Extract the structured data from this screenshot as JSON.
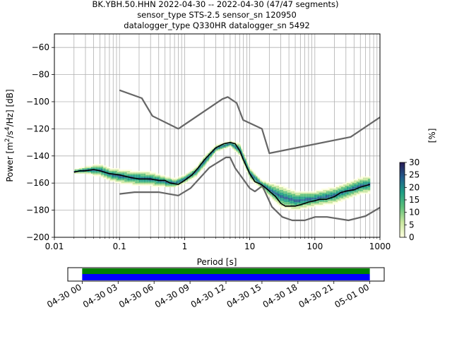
{
  "title_lines": [
    "BK.YBH.50.HHN   2022-04-30 -- 2022-04-30  (47/47 segments)",
    "sensor_type STS-2.5 sensor_sn 120950",
    "datalogger_type Q330HR datalogger_sn 5492"
  ],
  "chart_data": [
    {
      "type": "heatmap",
      "title": "BK.YBH.50.HHN   2022-04-30 -- 2022-04-30  (47/47 segments)",
      "xlabel": "Period [s]",
      "ylabel": "Power [m²/s⁴/Hz] [dB]",
      "ylabel_parts": {
        "pre": "Power [m",
        "sup1": "2",
        "mid": "/s",
        "sup2": "4",
        "post": "/Hz] [dB]"
      },
      "x_scale": "log",
      "xlim": [
        0.01,
        1000
      ],
      "ylim": [
        -200,
        -50
      ],
      "x_ticks": [
        0.01,
        0.1,
        1,
        10,
        100,
        1000
      ],
      "x_tick_labels": [
        "0.01",
        "0.1",
        "1",
        "10",
        "100",
        "1000"
      ],
      "y_ticks": [
        -200,
        -180,
        -160,
        -140,
        -120,
        -100,
        -80,
        -60
      ],
      "y_tick_labels": [
        "−200",
        "−180",
        "−160",
        "−140",
        "−120",
        "−100",
        "−80",
        "−60"
      ],
      "grid": true,
      "colorbar": {
        "label": "[%]",
        "range": [
          0,
          30
        ],
        "ticks": [
          0,
          5,
          10,
          15,
          20,
          25,
          30
        ],
        "tick_labels": [
          "0",
          "5",
          "10",
          "15",
          "20",
          "25",
          "30"
        ],
        "colormap": [
          "#ffffe0",
          "#c9e79f",
          "#5fc07a",
          "#1e9e84",
          "#225c8e",
          "#281a55"
        ]
      },
      "series": [
        {
          "name": "",
          "role": "noise-model-high",
          "color": "#666666",
          "period": [
            0.1,
            0.22,
            0.32,
            0.8,
            3.8,
            4.6,
            6.3,
            7.9,
            15.4,
            20,
            354.8,
            1000
          ],
          "power": [
            -91.5,
            -97.4,
            -110.5,
            -120.0,
            -98.0,
            -96.5,
            -101.0,
            -113.5,
            -120.0,
            -138.0,
            -126.0,
            -111.5
          ]
        },
        {
          "name": "",
          "role": "noise-model-low",
          "color": "#666666",
          "period": [
            0.1,
            0.17,
            0.4,
            0.8,
            1.24,
            2.4,
            4.3,
            5.0,
            6.0,
            10.0,
            12.0,
            15.6,
            21.9,
            31.6,
            45,
            70,
            101,
            154,
            328,
            600,
            1000
          ],
          "power": [
            -168.0,
            -166.7,
            -166.7,
            -169.2,
            -163.7,
            -148.6,
            -141.1,
            -141.1,
            -149.0,
            -163.8,
            -166.2,
            -162.1,
            -177.5,
            -185.0,
            -187.5,
            -187.5,
            -185.0,
            -185.0,
            -187.5,
            -184.4,
            -178.0
          ]
        },
        {
          "name": "",
          "role": "mode",
          "color": "#000000",
          "period": [
            0.02,
            0.025,
            0.03,
            0.04,
            0.05,
            0.07,
            0.1,
            0.15,
            0.2,
            0.3,
            0.4,
            0.5,
            0.6,
            0.8,
            1.0,
            1.3,
            1.6,
            2.0,
            2.5,
            3.0,
            4.0,
            5.0,
            6.0,
            7.0,
            8.0,
            10,
            12,
            15,
            18,
            20,
            25,
            30,
            35,
            40,
            50,
            60,
            70,
            80,
            100,
            120,
            150,
            200,
            250,
            300,
            400,
            500,
            600,
            700
          ],
          "power": [
            -152,
            -151,
            -151,
            -150,
            -151,
            -153,
            -154,
            -156,
            -157,
            -157,
            -158,
            -158,
            -160,
            -161,
            -158,
            -154,
            -149,
            -143,
            -138,
            -134,
            -131,
            -130,
            -131,
            -136,
            -143,
            -153,
            -159,
            -161,
            -164,
            -166,
            -170,
            -175,
            -177,
            -177,
            -177,
            -176,
            -175,
            -174,
            -173,
            -172,
            -172,
            -170,
            -167,
            -166,
            -165,
            -163,
            -162,
            -161
          ]
        }
      ],
      "density": {
        "period": [
          0.02,
          0.03,
          0.05,
          0.07,
          0.1,
          0.15,
          0.2,
          0.3,
          0.5,
          0.7,
          1.0,
          1.5,
          2.0,
          3.0,
          5.0,
          7.0,
          10,
          15,
          20,
          30,
          50,
          100,
          200,
          500,
          700
        ],
        "lower": [
          -153,
          -153,
          -155,
          -158,
          -160,
          -161,
          -162,
          -162,
          -163,
          -163,
          -160,
          -155,
          -148,
          -137,
          -133,
          -140,
          -157,
          -164,
          -170,
          -178,
          -180,
          -177,
          -175,
          -168,
          -167
        ],
        "upper": [
          -150,
          -148,
          -146,
          -149,
          -150,
          -151,
          -151,
          -152,
          -155,
          -157,
          -154,
          -148,
          -140,
          -132,
          -129,
          -131,
          -149,
          -158,
          -160,
          -162,
          -166,
          -166,
          -163,
          -156,
          -155
        ]
      }
    },
    {
      "type": "timeline",
      "tick_labels": [
        "04-30 00",
        "04-30 03",
        "04-30 06",
        "04-30 09",
        "04-30 12",
        "04-30 15",
        "04-30 18",
        "04-30 21",
        "05-01 00"
      ],
      "range_hours": [
        -1.2,
        25.2
      ],
      "coverage_hours": [
        0,
        24
      ],
      "colors": {
        "top": "#008000",
        "bottom": "#0000ff"
      }
    }
  ]
}
